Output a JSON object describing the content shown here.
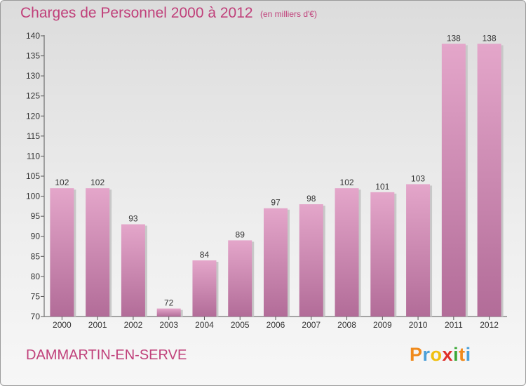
{
  "header": {
    "title": "Charges de Personnel 2000 à 2012",
    "subtitle": "(en milliers d'€)"
  },
  "footer": {
    "commune": "DAMMARTIN-EN-SERVE",
    "logo_text": "Proxiti",
    "logo_letters": [
      {
        "char": "P",
        "color": "#f08a1c"
      },
      {
        "char": "r",
        "color": "#4a9fd8"
      },
      {
        "char": "o",
        "color": "#f0c010"
      },
      {
        "char": "x",
        "color": "#e0302a"
      },
      {
        "char": "i",
        "color": "#3aa836"
      },
      {
        "char": "t",
        "color": "#f08a1c"
      },
      {
        "char": "i",
        "color": "#4a9fd8"
      }
    ]
  },
  "colors": {
    "bar_top": "#e4a6ca",
    "bar_bottom": "#b26c98",
    "text": "#333333",
    "accent": "#c0407a"
  },
  "chart_data": {
    "type": "bar",
    "categories": [
      "2000",
      "2001",
      "2002",
      "2003",
      "2004",
      "2005",
      "2006",
      "2007",
      "2008",
      "2009",
      "2010",
      "2011",
      "2012"
    ],
    "values": [
      102,
      102,
      93,
      72,
      84,
      89,
      97,
      98,
      102,
      101,
      103,
      138,
      138
    ],
    "ylim": [
      70,
      140
    ],
    "yticks": [
      70,
      75,
      80,
      85,
      90,
      95,
      100,
      105,
      110,
      115,
      120,
      125,
      130,
      135,
      140
    ],
    "grid": false,
    "legend": "none"
  }
}
